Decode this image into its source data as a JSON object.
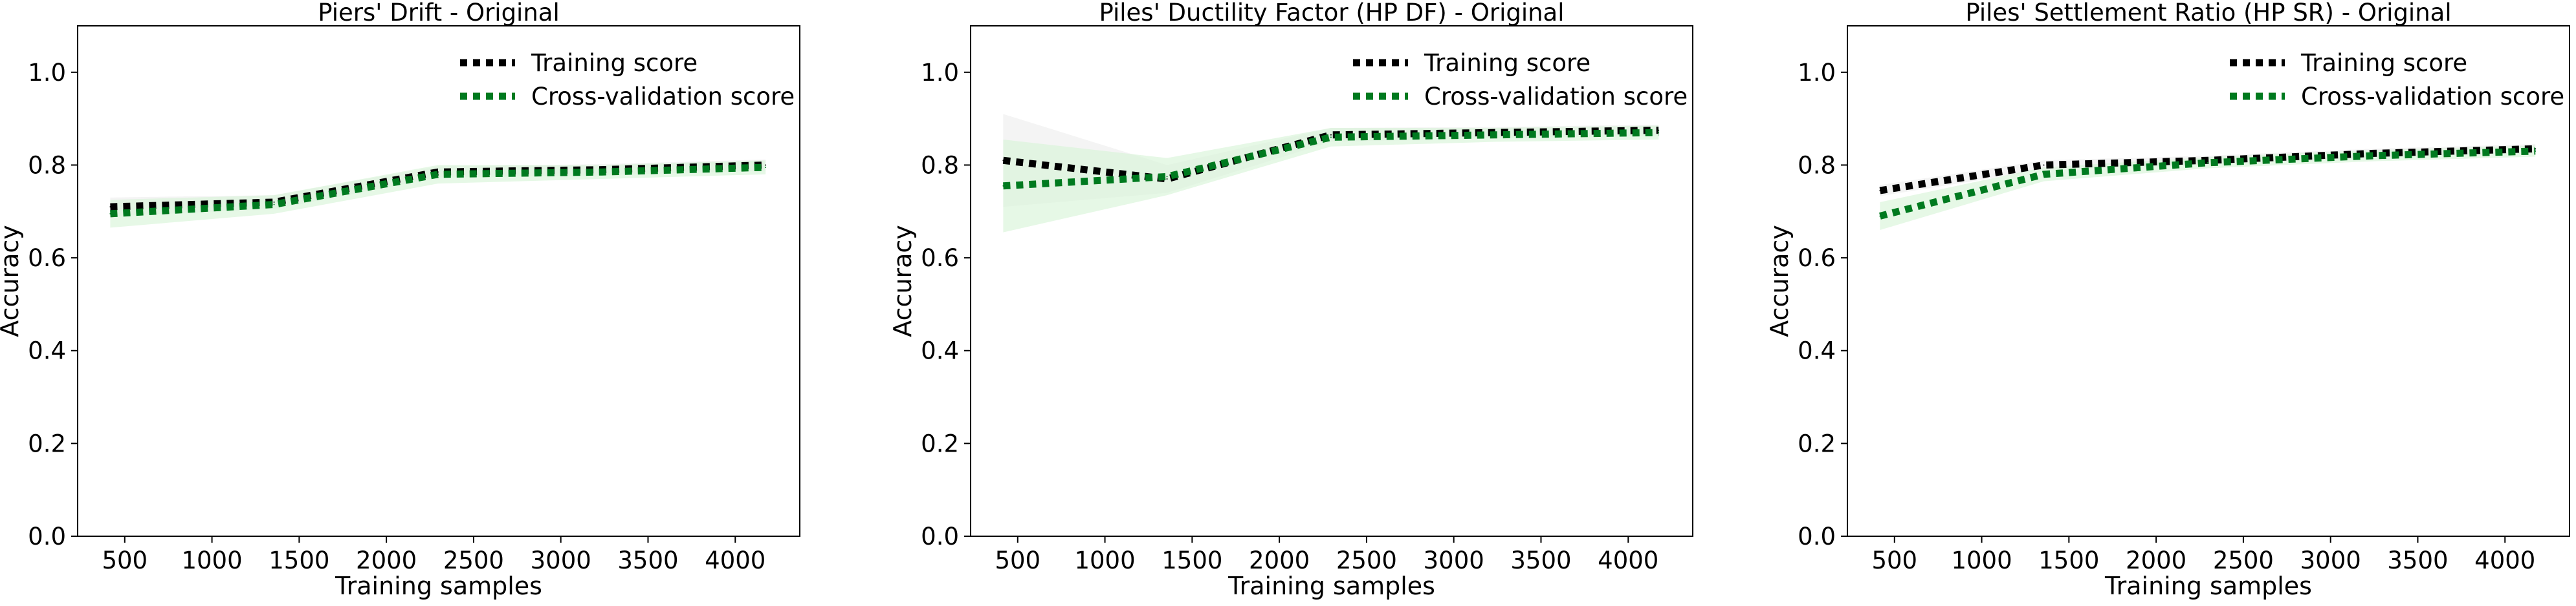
{
  "chart_data": [
    {
      "type": "line",
      "title": "Piers' Drift - Original",
      "xlabel": "Training samples",
      "ylabel": "Accuracy",
      "xlim": [
        230,
        4370
      ],
      "ylim": [
        0,
        1.1
      ],
      "xticks": [
        500,
        1000,
        1500,
        2000,
        2500,
        3000,
        3500,
        4000
      ],
      "yticks": [
        0.0,
        0.2,
        0.4,
        0.6,
        0.8,
        1.0
      ],
      "grid": false,
      "legend_position": "top-right",
      "x": [
        417,
        1356,
        2296,
        3235,
        4174
      ],
      "series": [
        {
          "name": "Training score",
          "color": "#000000",
          "values": [
            0.71,
            0.72,
            0.785,
            0.79,
            0.8
          ],
          "band": [
            0.02,
            0.015,
            0.012,
            0.012,
            0.012
          ]
        },
        {
          "name": "Cross-validation score",
          "color": "#007a1f",
          "band_color": "#d8f5d8",
          "values": [
            0.695,
            0.715,
            0.78,
            0.785,
            0.795
          ],
          "band": [
            0.03,
            0.02,
            0.02,
            0.015,
            0.015
          ]
        }
      ]
    },
    {
      "type": "line",
      "title": "Piles' Ductility Factor (HP DF) - Original",
      "xlabel": "Training samples",
      "ylabel": "Accuracy",
      "xlim": [
        230,
        4370
      ],
      "ylim": [
        0,
        1.1
      ],
      "xticks": [
        500,
        1000,
        1500,
        2000,
        2500,
        3000,
        3500,
        4000
      ],
      "yticks": [
        0.0,
        0.2,
        0.4,
        0.6,
        0.8,
        1.0
      ],
      "grid": false,
      "legend_position": "top-right",
      "x": [
        417,
        1356,
        2296,
        3235,
        4174
      ],
      "series": [
        {
          "name": "Training score",
          "color": "#000000",
          "values": [
            0.81,
            0.77,
            0.865,
            0.87,
            0.875
          ],
          "band": [
            0.1,
            0.03,
            0.015,
            0.012,
            0.012
          ]
        },
        {
          "name": "Cross-validation score",
          "color": "#007a1f",
          "band_color": "#d8f5d8",
          "values": [
            0.755,
            0.775,
            0.86,
            0.865,
            0.87
          ],
          "band": [
            0.1,
            0.04,
            0.02,
            0.015,
            0.015
          ]
        }
      ]
    },
    {
      "type": "line",
      "title": "Piles' Settlement Ratio (HP SR) - Original",
      "xlabel": "Training samples",
      "ylabel": "Accuracy",
      "xlim": [
        230,
        4370
      ],
      "ylim": [
        0,
        1.1
      ],
      "xticks": [
        500,
        1000,
        1500,
        2000,
        2500,
        3000,
        3500,
        4000
      ],
      "yticks": [
        0.0,
        0.2,
        0.4,
        0.6,
        0.8,
        1.0
      ],
      "grid": false,
      "legend_position": "top-right",
      "x": [
        417,
        1356,
        2296,
        3235,
        4174
      ],
      "series": [
        {
          "name": "Training score",
          "color": "#000000",
          "values": [
            0.745,
            0.8,
            0.81,
            0.825,
            0.835
          ],
          "band": [
            0.012,
            0.01,
            0.01,
            0.01,
            0.01
          ]
        },
        {
          "name": "Cross-validation score",
          "color": "#007a1f",
          "band_color": "#d8f5d8",
          "values": [
            0.69,
            0.78,
            0.805,
            0.82,
            0.83
          ],
          "band": [
            0.03,
            0.015,
            0.012,
            0.012,
            0.012
          ]
        }
      ]
    }
  ]
}
